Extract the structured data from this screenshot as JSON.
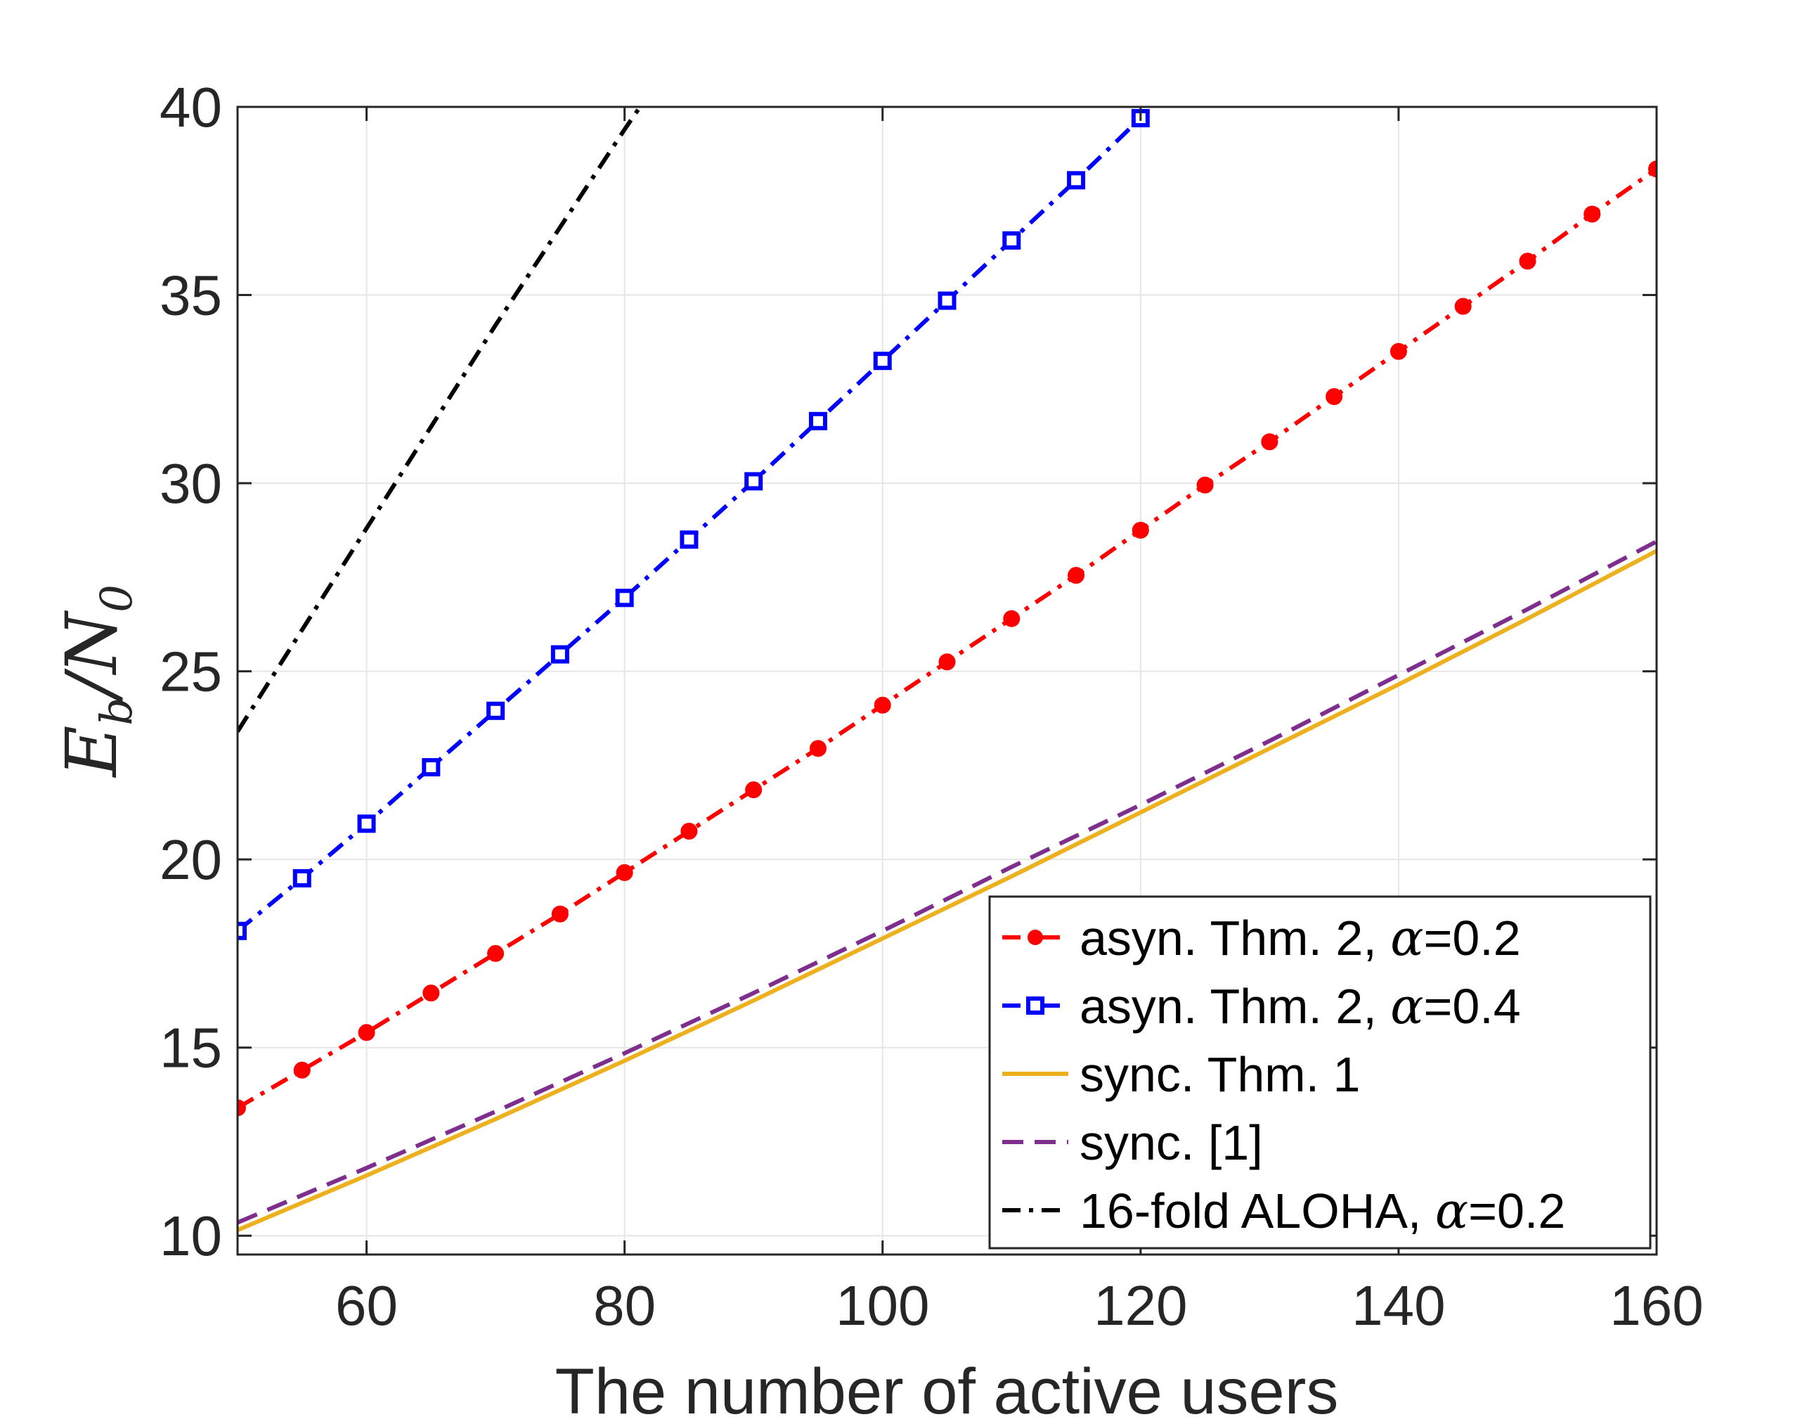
{
  "chart_data": {
    "type": "line",
    "title": "",
    "xlabel": "The number of active users",
    "ylabel": {
      "main": "E",
      "sub1": "b",
      "slash": "/",
      "main2": "N",
      "sub2": "0"
    },
    "xlim": [
      50,
      160
    ],
    "ylim": [
      9.5,
      40
    ],
    "xticks": [
      60,
      80,
      100,
      120,
      140,
      160
    ],
    "yticks": [
      10,
      15,
      20,
      25,
      30,
      35,
      40
    ],
    "grid": true,
    "legend_position": "bottom-right",
    "series": [
      {
        "name": "asyn. Thm. 2, α=0.2",
        "legend": {
          "prefix": "asyn. Thm. 2, ",
          "symbol": "α",
          "suffix": "=0.2"
        },
        "color": "#ff0000",
        "linestyle": "dashdot",
        "marker": "circle",
        "x": [
          50,
          55,
          60,
          65,
          70,
          75,
          80,
          85,
          90,
          95,
          100,
          105,
          110,
          115,
          120,
          125,
          130,
          135,
          140,
          145,
          150,
          155,
          160
        ],
        "y": [
          13.4,
          14.4,
          15.4,
          16.45,
          17.5,
          18.55,
          19.65,
          20.75,
          21.85,
          22.95,
          24.1,
          25.25,
          26.4,
          27.55,
          28.75,
          29.95,
          31.1,
          32.3,
          33.5,
          34.7,
          35.9,
          37.15,
          38.35
        ]
      },
      {
        "name": "asyn. Thm. 2, α=0.4",
        "legend": {
          "prefix": "asyn. Thm. 2, ",
          "symbol": "α",
          "suffix": "=0.4"
        },
        "color": "#0000ff",
        "linestyle": "dashdot",
        "marker": "square",
        "x": [
          50,
          55,
          60,
          65,
          70,
          75,
          80,
          85,
          90,
          95,
          100,
          105,
          110,
          115,
          120
        ],
        "y": [
          18.1,
          19.5,
          20.95,
          22.45,
          23.95,
          25.45,
          26.95,
          28.5,
          30.05,
          31.65,
          33.25,
          34.85,
          36.45,
          38.05,
          39.7
        ]
      },
      {
        "name": "sync. Thm. 1",
        "legend": {
          "prefix": "sync. Thm. 1",
          "symbol": "",
          "suffix": ""
        },
        "color": "#edb120",
        "linestyle": "solid",
        "marker": "none",
        "x": [
          50,
          60,
          70,
          80,
          90,
          100,
          110,
          120,
          130,
          140,
          150,
          160
        ],
        "y": [
          10.15,
          11.6,
          13.1,
          14.65,
          16.25,
          17.9,
          19.55,
          21.25,
          22.95,
          24.65,
          26.4,
          28.2
        ]
      },
      {
        "name": "sync. [1]",
        "legend": {
          "prefix": "sync. [1]",
          "symbol": "",
          "suffix": ""
        },
        "color": "#7e2f8e",
        "linestyle": "dashed",
        "marker": "none",
        "x": [
          50,
          60,
          70,
          80,
          90,
          100,
          110,
          120,
          130,
          140,
          150,
          160
        ],
        "y": [
          10.35,
          11.8,
          13.3,
          14.85,
          16.45,
          18.1,
          19.8,
          21.45,
          23.15,
          24.9,
          26.65,
          28.45
        ]
      },
      {
        "name": "16-fold ALOHA, α=0.2",
        "legend": {
          "prefix": "16-fold ALOHA, ",
          "symbol": "α",
          "suffix": "=0.2"
        },
        "color": "#000000",
        "linestyle": "dashdot",
        "marker": "none",
        "x": [
          50,
          60,
          70,
          80,
          81.2
        ],
        "y": [
          23.4,
          28.8,
          34.2,
          39.4,
          40.0
        ]
      }
    ]
  }
}
